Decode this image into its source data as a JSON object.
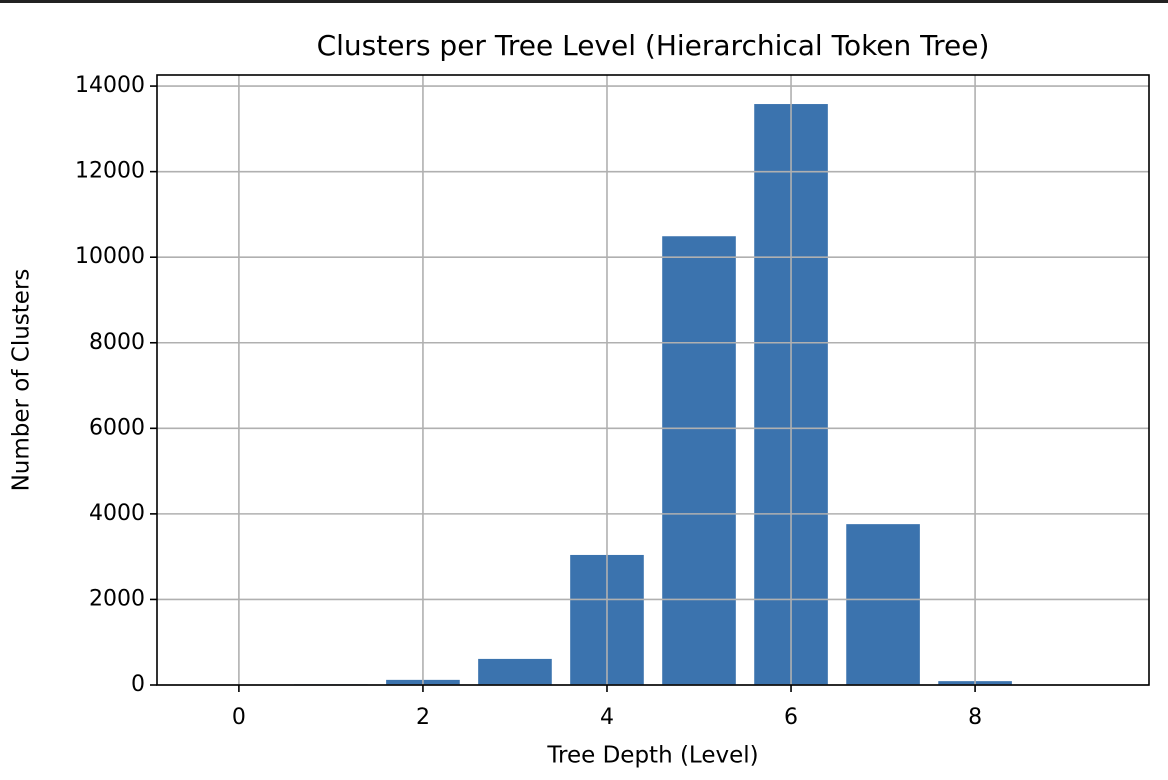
{
  "chart_data": {
    "type": "bar",
    "title": "Clusters per Tree Level (Hierarchical Token Tree)",
    "x_label": "Tree Depth (Level)",
    "y_label": "Number of Clusters",
    "x": [
      0,
      1,
      2,
      3,
      4,
      5,
      6,
      7,
      8,
      9
    ],
    "values": [
      1,
      16,
      120,
      610,
      3040,
      10490,
      13580,
      3760,
      90,
      3
    ],
    "color": "#3b73ae",
    "xlim": [
      -0.89,
      9.89
    ],
    "xticks": [
      0,
      2,
      4,
      6,
      8
    ],
    "ylim": [
      0,
      14259
    ],
    "yticks": [
      0,
      2000,
      4000,
      6000,
      8000,
      10000,
      12000,
      14000
    ],
    "grid": true
  }
}
